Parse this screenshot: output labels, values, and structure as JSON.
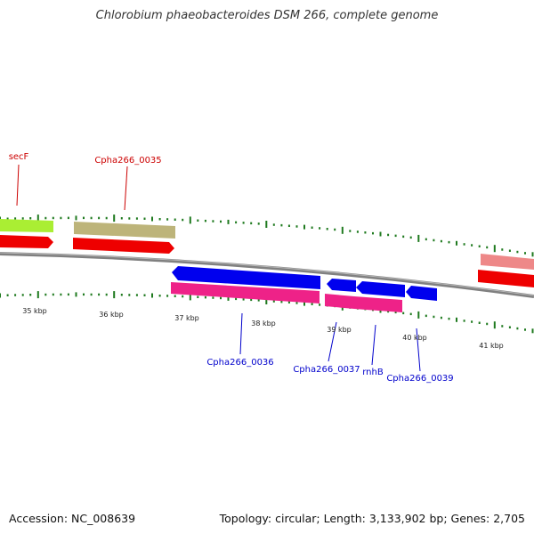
{
  "title": "Chlorobium phaeobacteroides DSM 266, complete genome",
  "footer": {
    "accession": "Accession: NC_008639",
    "topology": "Topology: circular; Length: 3,133,902 bp; Genes: 2,705"
  },
  "colors": {
    "label_forward": "#cc0000",
    "label_reverse": "#0000cc",
    "tick": "#1f7a1f",
    "backbone": "#808080",
    "cds_forward": "#ee0000",
    "cds_reverse": "#0000ee",
    "gene_reverse": "#ee2288"
  },
  "kbp_labels": [
    "35 kbp",
    "36 kbp",
    "37 kbp",
    "38 kbp",
    "39 kbp",
    "40 kbp",
    "41 kbp"
  ],
  "gene_labels": {
    "secF": "secF",
    "c0035": "Cpha266_0035",
    "c0036": "Cpha266_0036",
    "c0037": "Cpha266_0037",
    "rnhB": "rnhB",
    "c0039": "Cpha266_0039"
  }
}
